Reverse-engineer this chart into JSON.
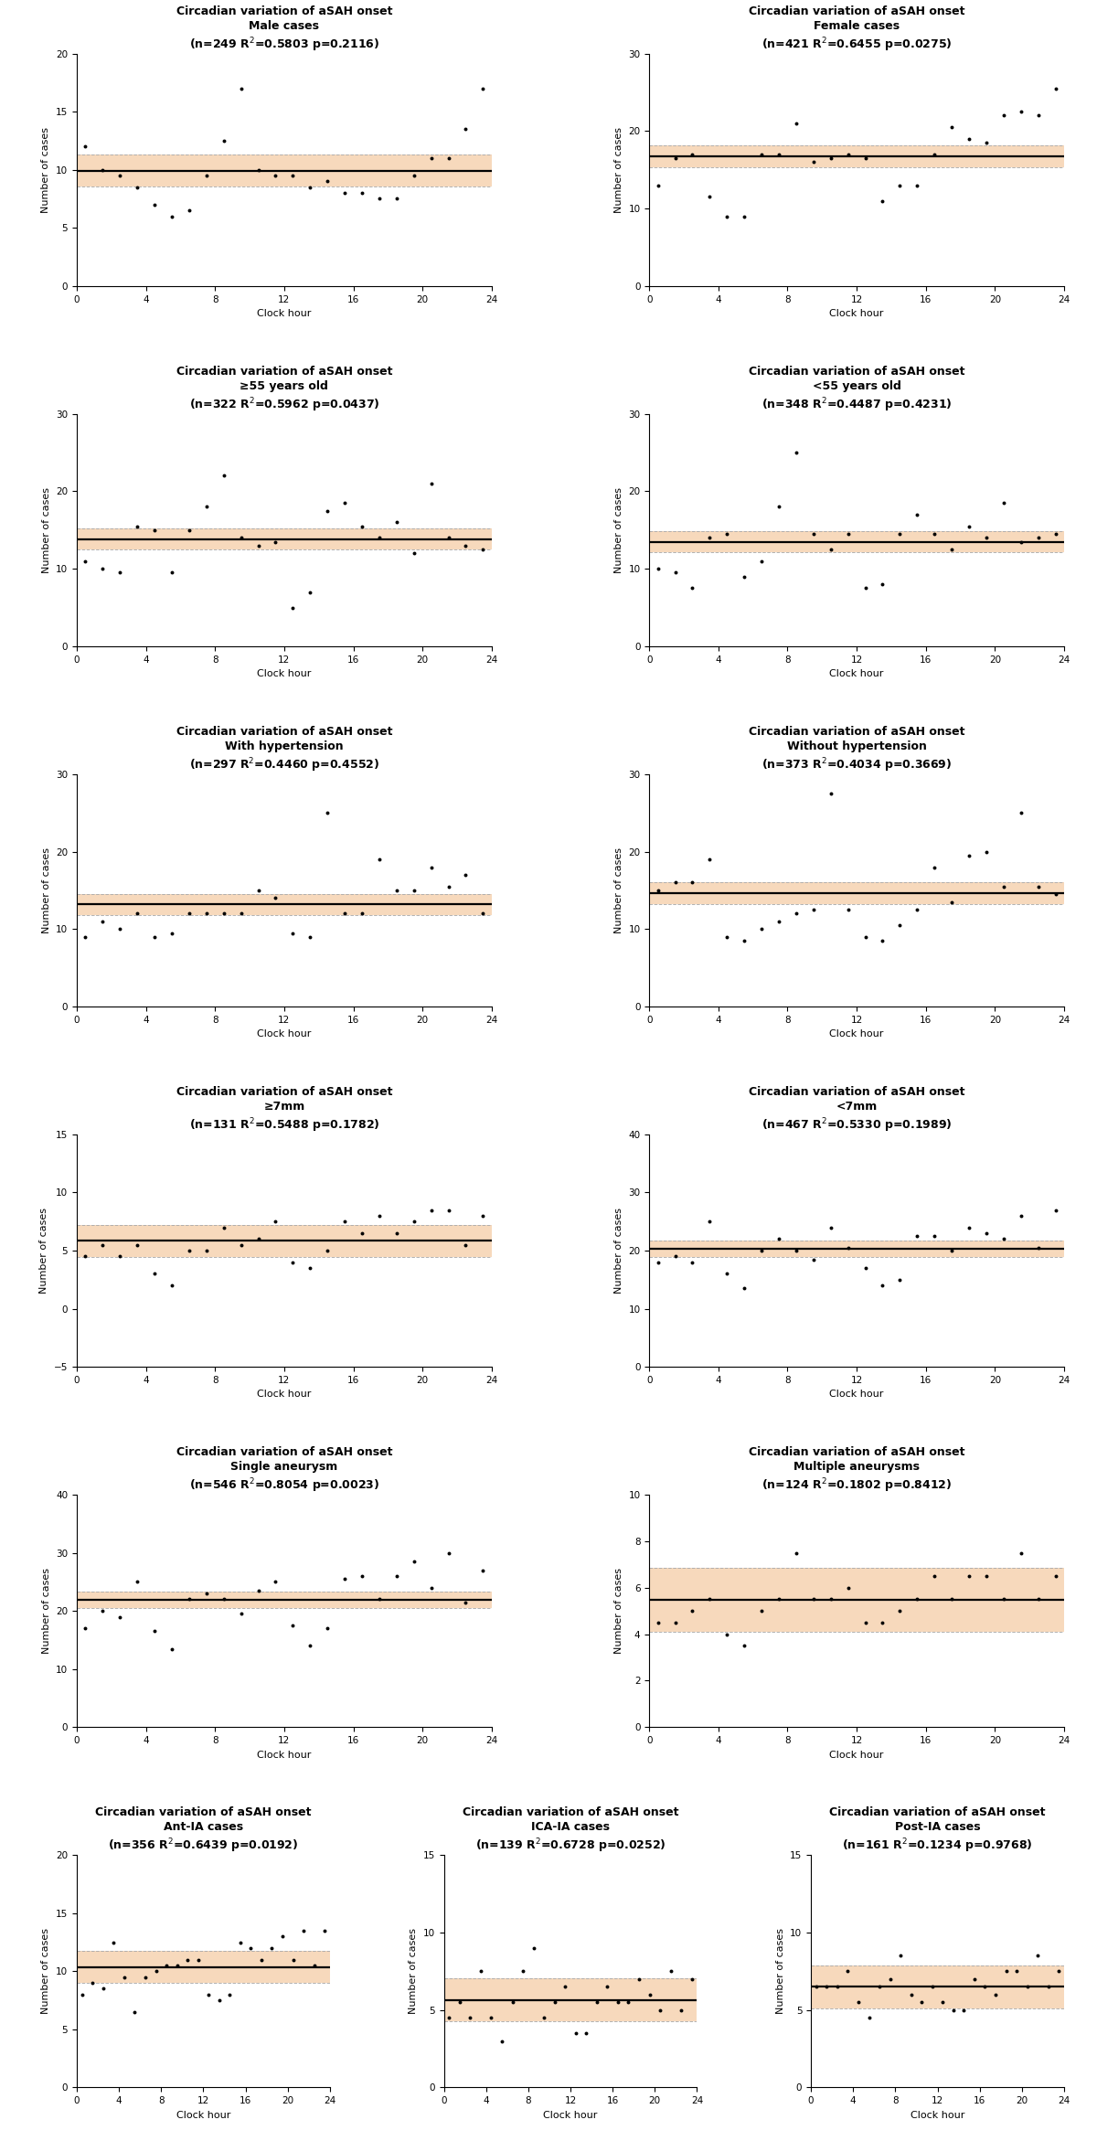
{
  "subplots": [
    {
      "title_line1": "Circadian variation of aSAH onset",
      "title_line2": "Male cases",
      "title_line3_a": "(n=249 R",
      "title_line3_b": "=0.5803 p=0.2116)",
      "ylim": [
        0,
        20
      ],
      "yticks": [
        0,
        5,
        10,
        15,
        20
      ],
      "data_x": [
        0,
        1,
        2,
        3,
        4,
        5,
        6,
        7,
        8,
        9,
        10,
        11,
        12,
        13,
        14,
        15,
        16,
        17,
        18,
        19,
        20,
        21,
        22,
        23
      ],
      "data_y": [
        12.0,
        10.0,
        9.5,
        8.5,
        7.0,
        6.0,
        6.5,
        9.5,
        12.5,
        17.0,
        10.0,
        9.5,
        9.5,
        8.5,
        9.0,
        8.0,
        8.0,
        7.5,
        7.5,
        9.5,
        11.0,
        11.0,
        13.5,
        17.0
      ],
      "col": 0,
      "row": 0,
      "ncols": 2
    },
    {
      "title_line1": "Circadian variation of aSAH onset",
      "title_line2": "Female cases",
      "title_line3_a": "(n=421 R",
      "title_line3_b": "=0.6455 p=0.0275)",
      "ylim": [
        0,
        30
      ],
      "yticks": [
        0,
        10,
        20,
        30
      ],
      "data_x": [
        0,
        1,
        2,
        3,
        4,
        5,
        6,
        7,
        8,
        9,
        10,
        11,
        12,
        13,
        14,
        15,
        16,
        17,
        18,
        19,
        20,
        21,
        22,
        23
      ],
      "data_y": [
        13.0,
        16.5,
        17.0,
        11.5,
        9.0,
        9.0,
        17.0,
        17.0,
        21.0,
        16.0,
        16.5,
        17.0,
        16.5,
        11.0,
        13.0,
        13.0,
        17.0,
        20.5,
        19.0,
        18.5,
        22.0,
        22.5,
        22.0,
        25.5
      ],
      "col": 1,
      "row": 0,
      "ncols": 2
    },
    {
      "title_line1": "Circadian variation of aSAH onset",
      "title_line2": "≥55 years old",
      "title_line3_a": "(n=322 R",
      "title_line3_b": "=0.5962 p=0.0437)",
      "ylim": [
        0,
        30
      ],
      "yticks": [
        0,
        10,
        20,
        30
      ],
      "data_x": [
        0,
        1,
        2,
        3,
        4,
        5,
        6,
        7,
        8,
        9,
        10,
        11,
        12,
        13,
        14,
        15,
        16,
        17,
        18,
        19,
        20,
        21,
        22,
        23
      ],
      "data_y": [
        11.0,
        10.0,
        9.5,
        15.5,
        15.0,
        9.5,
        15.0,
        18.0,
        22.0,
        14.0,
        13.0,
        13.5,
        5.0,
        7.0,
        17.5,
        18.5,
        15.5,
        14.0,
        16.0,
        12.0,
        21.0,
        14.0,
        13.0,
        12.5
      ],
      "col": 0,
      "row": 1,
      "ncols": 2
    },
    {
      "title_line1": "Circadian variation of aSAH onset",
      "title_line2": "<55 years old",
      "title_line3_a": "(n=348 R",
      "title_line3_b": "=0.4487 p=0.4231)",
      "ylim": [
        0,
        30
      ],
      "yticks": [
        0,
        10,
        20,
        30
      ],
      "data_x": [
        0,
        1,
        2,
        3,
        4,
        5,
        6,
        7,
        8,
        9,
        10,
        11,
        12,
        13,
        14,
        15,
        16,
        17,
        18,
        19,
        20,
        21,
        22,
        23
      ],
      "data_y": [
        10.0,
        9.5,
        7.5,
        14.0,
        14.5,
        9.0,
        11.0,
        18.0,
        25.0,
        14.5,
        12.5,
        14.5,
        7.5,
        8.0,
        14.5,
        17.0,
        14.5,
        12.5,
        15.5,
        14.0,
        18.5,
        13.5,
        14.0,
        14.5
      ],
      "col": 1,
      "row": 1,
      "ncols": 2
    },
    {
      "title_line1": "Circadian variation of aSAH onset",
      "title_line2": "With hypertension",
      "title_line3_a": "(n=297 R",
      "title_line3_b": "=0.4460 p=0.4552)",
      "ylim": [
        0,
        30
      ],
      "yticks": [
        0,
        10,
        20,
        30
      ],
      "data_x": [
        0,
        1,
        2,
        3,
        4,
        5,
        6,
        7,
        8,
        9,
        10,
        11,
        12,
        13,
        14,
        15,
        16,
        17,
        18,
        19,
        20,
        21,
        22,
        23
      ],
      "data_y": [
        9.0,
        11.0,
        10.0,
        12.0,
        9.0,
        9.5,
        12.0,
        12.0,
        12.0,
        12.0,
        15.0,
        14.0,
        9.5,
        9.0,
        25.0,
        12.0,
        12.0,
        19.0,
        15.0,
        15.0,
        18.0,
        15.5,
        17.0,
        12.0
      ],
      "col": 0,
      "row": 2,
      "ncols": 2
    },
    {
      "title_line1": "Circadian variation of aSAH onset",
      "title_line2": "Without hypertension",
      "title_line3_a": "(n=373 R",
      "title_line3_b": "=0.4034 p=0.3669)",
      "ylim": [
        0,
        30
      ],
      "yticks": [
        0,
        10,
        20,
        30
      ],
      "data_x": [
        0,
        1,
        2,
        3,
        4,
        5,
        6,
        7,
        8,
        9,
        10,
        11,
        12,
        13,
        14,
        15,
        16,
        17,
        18,
        19,
        20,
        21,
        22,
        23
      ],
      "data_y": [
        15.0,
        16.0,
        16.0,
        19.0,
        9.0,
        8.5,
        10.0,
        11.0,
        12.0,
        12.5,
        27.5,
        12.5,
        9.0,
        8.5,
        10.5,
        12.5,
        18.0,
        13.5,
        19.5,
        20.0,
        15.5,
        25.0,
        15.5,
        14.5
      ],
      "col": 1,
      "row": 2,
      "ncols": 2
    },
    {
      "title_line1": "Circadian variation of aSAH onset",
      "title_line2": "≥7mm",
      "title_line3_a": "(n=131 R",
      "title_line3_b": "=0.5488 p=0.1782)",
      "ylim": [
        -5,
        15
      ],
      "yticks": [
        -5,
        0,
        5,
        10,
        15
      ],
      "data_x": [
        0,
        1,
        2,
        3,
        4,
        5,
        6,
        7,
        8,
        9,
        10,
        11,
        12,
        13,
        14,
        15,
        16,
        17,
        18,
        19,
        20,
        21,
        22,
        23
      ],
      "data_y": [
        4.5,
        5.5,
        4.5,
        5.5,
        3.0,
        2.0,
        5.0,
        5.0,
        7.0,
        5.5,
        6.0,
        7.5,
        4.0,
        3.5,
        5.0,
        7.5,
        6.5,
        8.0,
        6.5,
        7.5,
        8.5,
        8.5,
        5.5,
        8.0
      ],
      "col": 0,
      "row": 3,
      "ncols": 2
    },
    {
      "title_line1": "Circadian variation of aSAH onset",
      "title_line2": "<7mm",
      "title_line3_a": "(n=467 R",
      "title_line3_b": "=0.5330 p=0.1989)",
      "ylim": [
        0,
        40
      ],
      "yticks": [
        0,
        10,
        20,
        30,
        40
      ],
      "data_x": [
        0,
        1,
        2,
        3,
        4,
        5,
        6,
        7,
        8,
        9,
        10,
        11,
        12,
        13,
        14,
        15,
        16,
        17,
        18,
        19,
        20,
        21,
        22,
        23
      ],
      "data_y": [
        18.0,
        19.0,
        18.0,
        25.0,
        16.0,
        13.5,
        20.0,
        22.0,
        20.0,
        18.5,
        24.0,
        20.5,
        17.0,
        14.0,
        15.0,
        22.5,
        22.5,
        20.0,
        24.0,
        23.0,
        22.0,
        26.0,
        20.5,
        27.0
      ],
      "col": 1,
      "row": 3,
      "ncols": 2
    },
    {
      "title_line1": "Circadian variation of aSAH onset",
      "title_line2": "Single aneurysm",
      "title_line3_a": "(n=546 R",
      "title_line3_b": "=0.8054 p=0.0023)",
      "ylim": [
        0,
        40
      ],
      "yticks": [
        0,
        10,
        20,
        30,
        40
      ],
      "data_x": [
        0,
        1,
        2,
        3,
        4,
        5,
        6,
        7,
        8,
        9,
        10,
        11,
        12,
        13,
        14,
        15,
        16,
        17,
        18,
        19,
        20,
        21,
        22,
        23
      ],
      "data_y": [
        17.0,
        20.0,
        19.0,
        25.0,
        16.5,
        13.5,
        22.0,
        23.0,
        22.0,
        19.5,
        23.5,
        25.0,
        17.5,
        14.0,
        17.0,
        25.5,
        26.0,
        22.0,
        26.0,
        28.5,
        24.0,
        30.0,
        21.5,
        27.0
      ],
      "col": 0,
      "row": 4,
      "ncols": 2
    },
    {
      "title_line1": "Circadian variation of aSAH onset",
      "title_line2": "Multiple aneurysms",
      "title_line3_a": "(n=124 R",
      "title_line3_b": "=0.1802 p=0.8412)",
      "ylim": [
        0,
        10
      ],
      "yticks": [
        0,
        2,
        4,
        6,
        8,
        10
      ],
      "data_x": [
        0,
        1,
        2,
        3,
        4,
        5,
        6,
        7,
        8,
        9,
        10,
        11,
        12,
        13,
        14,
        15,
        16,
        17,
        18,
        19,
        20,
        21,
        22,
        23
      ],
      "data_y": [
        4.5,
        4.5,
        5.0,
        5.5,
        4.0,
        3.5,
        5.0,
        5.5,
        7.5,
        5.5,
        5.5,
        6.0,
        4.5,
        4.5,
        5.0,
        5.5,
        6.5,
        5.5,
        6.5,
        6.5,
        5.5,
        7.5,
        5.5,
        6.5
      ],
      "col": 1,
      "row": 4,
      "ncols": 2
    },
    {
      "title_line1": "Circadian variation of aSAH onset",
      "title_line2": "Ant-IA cases",
      "title_line3_a": "(n=356 R",
      "title_line3_b": "=0.6439 p=0.0192)",
      "ylim": [
        0,
        20
      ],
      "yticks": [
        0,
        5,
        10,
        15,
        20
      ],
      "data_x": [
        0,
        1,
        2,
        3,
        4,
        5,
        6,
        7,
        8,
        9,
        10,
        11,
        12,
        13,
        14,
        15,
        16,
        17,
        18,
        19,
        20,
        21,
        22,
        23
      ],
      "data_y": [
        8.0,
        9.0,
        8.5,
        12.5,
        9.5,
        6.5,
        9.5,
        10.0,
        10.5,
        10.5,
        11.0,
        11.0,
        8.0,
        7.5,
        8.0,
        12.5,
        12.0,
        11.0,
        12.0,
        13.0,
        11.0,
        13.5,
        10.5,
        13.5
      ],
      "col": 0,
      "row": 5,
      "ncols": 3
    },
    {
      "title_line1": "Circadian variation of aSAH onset",
      "title_line2": "ICA-IA cases",
      "title_line3_a": "(n=139 R",
      "title_line3_b": "=0.6728 p=0.0252)",
      "ylim": [
        0,
        15
      ],
      "yticks": [
        0,
        5,
        10,
        15
      ],
      "data_x": [
        0,
        1,
        2,
        3,
        4,
        5,
        6,
        7,
        8,
        9,
        10,
        11,
        12,
        13,
        14,
        15,
        16,
        17,
        18,
        19,
        20,
        21,
        22,
        23
      ],
      "data_y": [
        4.5,
        5.5,
        4.5,
        7.5,
        4.5,
        3.0,
        5.5,
        7.5,
        9.0,
        4.5,
        5.5,
        6.5,
        3.5,
        3.5,
        5.5,
        6.5,
        5.5,
        5.5,
        7.0,
        6.0,
        5.0,
        7.5,
        5.0,
        7.0
      ],
      "col": 1,
      "row": 5,
      "ncols": 3
    },
    {
      "title_line1": "Circadian variation of aSAH onset",
      "title_line2": "Post-IA cases",
      "title_line3_a": "(n=161 R",
      "title_line3_b": "=0.1234 p=0.9768)",
      "ylim": [
        0,
        15
      ],
      "yticks": [
        0,
        5,
        10,
        15
      ],
      "data_x": [
        0,
        1,
        2,
        3,
        4,
        5,
        6,
        7,
        8,
        9,
        10,
        11,
        12,
        13,
        14,
        15,
        16,
        17,
        18,
        19,
        20,
        21,
        22,
        23
      ],
      "data_y": [
        6.5,
        6.5,
        6.5,
        7.5,
        5.5,
        4.5,
        6.5,
        7.0,
        8.5,
        6.0,
        5.5,
        6.5,
        5.5,
        5.0,
        5.0,
        7.0,
        6.5,
        6.0,
        7.5,
        7.5,
        6.5,
        8.5,
        6.5,
        7.5
      ],
      "col": 2,
      "row": 5,
      "ncols": 3
    }
  ],
  "curve_color": "#000000",
  "fill_color": "#f5c9a0",
  "fill_alpha": 0.7,
  "dot_color": "#000000",
  "dot_size": 8,
  "xlabel": "Clock hour",
  "ylabel": "Number of cases",
  "xticks": [
    0,
    4,
    8,
    12,
    16,
    20,
    24
  ],
  "title_fontsize": 9,
  "label_fontsize": 8,
  "tick_fontsize": 7.5,
  "background": "#ffffff"
}
